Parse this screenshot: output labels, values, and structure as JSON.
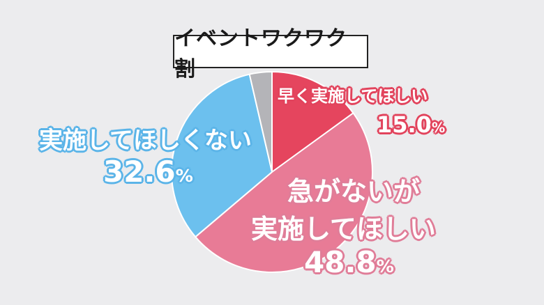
{
  "chart_data": {
    "type": "pie",
    "title": "イベントワクワク割",
    "slices": [
      {
        "label": "早く実施してほしい",
        "value": 15.0,
        "value_text": "15.0",
        "color": "#e5455e"
      },
      {
        "label_line1": "急がないが",
        "label_line2": "実施してほしい",
        "value": 48.8,
        "value_text": "48.8",
        "color": "#e87b96"
      },
      {
        "label": "実施してほしくない",
        "value": 32.6,
        "value_text": "32.6",
        "color": "#6cc0ee"
      },
      {
        "label": "",
        "value": 3.6,
        "color": "#b4b4b8"
      }
    ],
    "percent_sign": "%"
  }
}
